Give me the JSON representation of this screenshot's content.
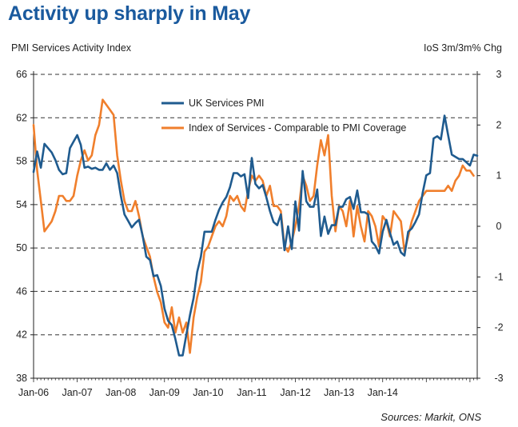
{
  "header": {
    "title": "Activity up sharply in May",
    "left_axis_label": "PMI Services Activity Index",
    "right_axis_label": "IoS 3m/3m% Chg",
    "source": "Sources: Markit, ONS"
  },
  "chart_data": {
    "type": "line",
    "title": "Activity up sharply in May",
    "ylabel": "PMI Services Activity Index",
    "y2label": "IoS 3m/3m% Chg",
    "xlabel": "",
    "ylim": [
      38,
      66
    ],
    "y2lim": [
      -3,
      3
    ],
    "y_ticks": [
      "38",
      "42",
      "46",
      "50",
      "54",
      "58",
      "62",
      "66"
    ],
    "y2_ticks": [
      "-3",
      "-2",
      "-1",
      "0",
      "1",
      "2",
      "3"
    ],
    "x_ticks": [
      "Jan-06",
      "Jan-07",
      "Jan-08",
      "Jan-09",
      "Jan-10",
      "Jan-11",
      "Jan-12",
      "Jan-13",
      "Jan-14"
    ],
    "x_start": "Jan-06",
    "x_interval": "month",
    "grid": "horizontal dashed",
    "legend_position": "top-center",
    "series": [
      {
        "name": "UK Services PMI",
        "axis": "left",
        "color": "#1f5b8f",
        "values": [
          57.0,
          58.9,
          57.4,
          59.6,
          59.2,
          58.8,
          58.1,
          57.2,
          56.8,
          56.9,
          59.2,
          59.8,
          60.4,
          59.5,
          57.4,
          57.5,
          57.3,
          57.4,
          57.2,
          57.2,
          57.8,
          57.2,
          57.6,
          56.9,
          54.8,
          53.1,
          52.5,
          51.9,
          52.3,
          52.6,
          51.1,
          49.2,
          48.9,
          47.4,
          47.5,
          46.5,
          44.4,
          43.3,
          42.9,
          41.6,
          40.1,
          40.1,
          42.0,
          43.8,
          45.4,
          47.8,
          49.2,
          51.5,
          51.5,
          51.5,
          52.6,
          53.5,
          54.2,
          54.7,
          55.6,
          56.9,
          56.9,
          56.6,
          56.8,
          54.6,
          58.3,
          55.9,
          55.5,
          55.8,
          54.7,
          53.4,
          52.4,
          52.1,
          53.1,
          49.8,
          52.0,
          49.9,
          54.3,
          51.6,
          57.1,
          54.3,
          53.8,
          53.8,
          55.4,
          51.1,
          52.9,
          51.3,
          52.1,
          52.1,
          53.8,
          53.8,
          54.5,
          54.7,
          53.6,
          55.3,
          53.3,
          53.3,
          53.1,
          50.6,
          50.2,
          49.5,
          51.5,
          52.6,
          51.4,
          50.3,
          50.6,
          49.6,
          49.3,
          51.5,
          51.8,
          52.4,
          53.1,
          55.1,
          56.7,
          56.9,
          60.1,
          60.3,
          60.0,
          62.2,
          60.4,
          58.6,
          58.4,
          58.2,
          58.2,
          57.9,
          57.6,
          58.6,
          58.5
        ]
      },
      {
        "name": "Index of Services - Comparable to PMI Coverage",
        "axis": "right",
        "color": "#f07f2c",
        "values": [
          2.0,
          1.1,
          0.5,
          -0.1,
          0.0,
          0.1,
          0.3,
          0.6,
          0.6,
          0.5,
          0.5,
          0.6,
          1.0,
          1.3,
          1.5,
          1.3,
          1.4,
          1.8,
          2.0,
          2.5,
          2.4,
          2.3,
          2.2,
          1.4,
          0.9,
          0.5,
          0.3,
          0.3,
          0.5,
          0.2,
          -0.2,
          -0.4,
          -0.6,
          -1.0,
          -1.3,
          -1.5,
          -1.9,
          -2.0,
          -1.6,
          -2.1,
          -1.8,
          -2.1,
          -1.9,
          -2.5,
          -1.8,
          -1.4,
          -1.1,
          -0.5,
          -0.4,
          -0.2,
          0.0,
          0.1,
          0.0,
          0.2,
          0.6,
          0.5,
          0.6,
          0.4,
          0.3,
          0.7,
          1.0,
          0.9,
          1.0,
          0.9,
          0.6,
          0.8,
          0.4,
          0.4,
          0.3,
          -0.4,
          -0.5,
          -0.3,
          0.0,
          0.4,
          1.0,
          0.8,
          0.5,
          0.6,
          1.2,
          1.7,
          1.4,
          1.8,
          0.6,
          -0.1,
          0.4,
          0.3,
          0.0,
          0.5,
          -0.2,
          0.4,
          0.0,
          -0.3,
          0.3,
          0.2,
          0.0,
          -0.4,
          0.2,
          0.1,
          -0.2,
          0.3,
          0.2,
          0.1,
          -0.5,
          -0.2,
          0.1,
          0.3,
          0.5,
          0.6,
          0.7,
          0.7,
          0.7,
          0.7,
          0.7,
          0.7,
          0.8,
          0.7,
          0.9,
          1.0,
          1.2,
          1.1,
          1.1,
          1.0
        ]
      }
    ]
  }
}
